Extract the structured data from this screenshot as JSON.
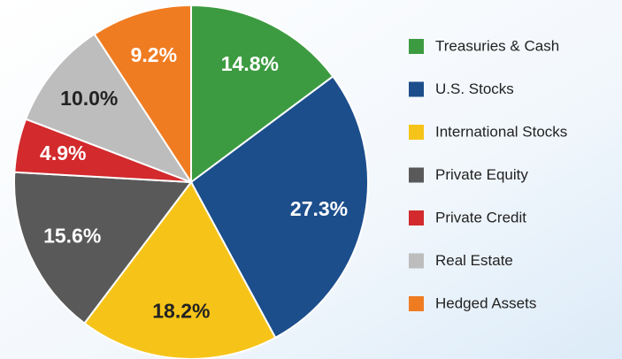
{
  "chart_data": {
    "type": "pie",
    "categories": [
      "Treasuries & Cash",
      "U.S. Stocks",
      "International Stocks",
      "Private Equity",
      "Private Credit",
      "Real Estate",
      "Hedged Assets"
    ],
    "values": [
      14.8,
      27.3,
      18.2,
      15.6,
      4.9,
      10.0,
      9.2
    ],
    "value_labels": [
      "14.8%",
      "27.3%",
      "18.2%",
      "15.6%",
      "4.9%",
      "10.0%",
      "9.2%"
    ],
    "colors": [
      "#3c9b41",
      "#1c4e8c",
      "#f6c419",
      "#595959",
      "#d22a2d",
      "#bdbdbd",
      "#f07c22"
    ],
    "legend": "right"
  }
}
